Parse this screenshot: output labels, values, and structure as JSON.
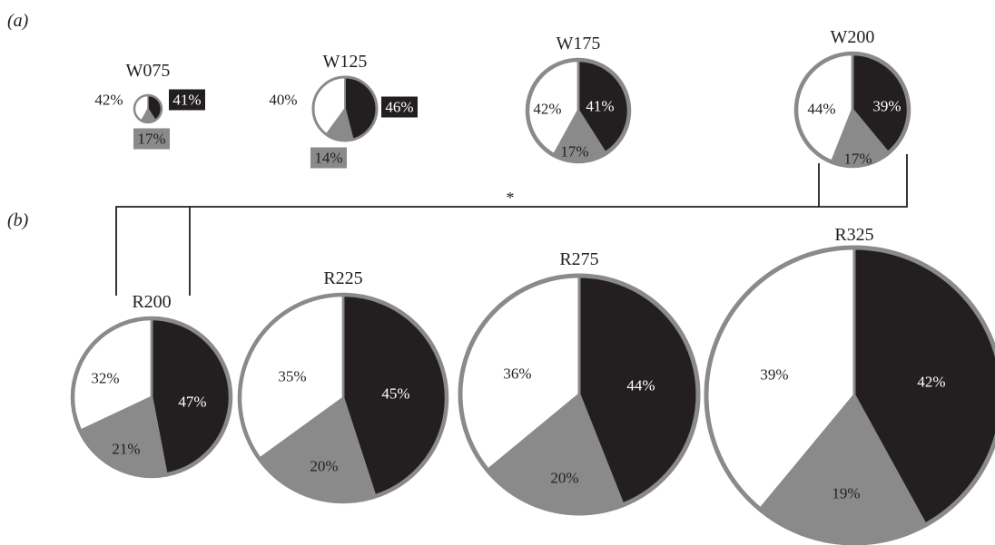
{
  "panels": [
    {
      "id": "a",
      "label": "(a)"
    },
    {
      "id": "b",
      "label": "(b)"
    }
  ],
  "colors": {
    "black_segment": "#231f20",
    "grey_segment": "#8a8a8a",
    "white_segment": "#ffffff",
    "outline": "#8a8a8a",
    "bracket": "#231f20"
  },
  "significance": {
    "marker": "*",
    "between": [
      "W200",
      "R200"
    ]
  },
  "chart_data": [
    {
      "type": "pie",
      "panel": "a",
      "title": "W075",
      "slices": [
        {
          "category": "black",
          "value": 41,
          "label": "41%"
        },
        {
          "category": "grey",
          "value": 17,
          "label": "17%"
        },
        {
          "category": "white",
          "value": 42,
          "label": "42%"
        }
      ]
    },
    {
      "type": "pie",
      "panel": "a",
      "title": "W125",
      "slices": [
        {
          "category": "black",
          "value": 46,
          "label": "46%"
        },
        {
          "category": "grey",
          "value": 14,
          "label": "14%"
        },
        {
          "category": "white",
          "value": 40,
          "label": "40%"
        }
      ]
    },
    {
      "type": "pie",
      "panel": "a",
      "title": "W175",
      "slices": [
        {
          "category": "black",
          "value": 41,
          "label": "41%"
        },
        {
          "category": "grey",
          "value": 17,
          "label": "17%"
        },
        {
          "category": "white",
          "value": 42,
          "label": "42%"
        }
      ]
    },
    {
      "type": "pie",
      "panel": "a",
      "title": "W200",
      "slices": [
        {
          "category": "black",
          "value": 39,
          "label": "39%"
        },
        {
          "category": "grey",
          "value": 17,
          "label": "17%"
        },
        {
          "category": "white",
          "value": 44,
          "label": "44%"
        }
      ]
    },
    {
      "type": "pie",
      "panel": "b",
      "title": "R200",
      "slices": [
        {
          "category": "black",
          "value": 47,
          "label": "47%"
        },
        {
          "category": "grey",
          "value": 21,
          "label": "21%"
        },
        {
          "category": "white",
          "value": 32,
          "label": "32%"
        }
      ]
    },
    {
      "type": "pie",
      "panel": "b",
      "title": "R225",
      "slices": [
        {
          "category": "black",
          "value": 45,
          "label": "45%"
        },
        {
          "category": "grey",
          "value": 20,
          "label": "20%"
        },
        {
          "category": "white",
          "value": 35,
          "label": "35%"
        }
      ]
    },
    {
      "type": "pie",
      "panel": "b",
      "title": "R275",
      "slices": [
        {
          "category": "black",
          "value": 44,
          "label": "44%"
        },
        {
          "category": "grey",
          "value": 20,
          "label": "20%"
        },
        {
          "category": "white",
          "value": 36,
          "label": "36%"
        }
      ]
    },
    {
      "type": "pie",
      "panel": "b",
      "title": "R325",
      "slices": [
        {
          "category": "black",
          "value": 42,
          "label": "42%"
        },
        {
          "category": "grey",
          "value": 19,
          "label": "19%"
        },
        {
          "category": "white",
          "value": 39,
          "label": "39%"
        }
      ]
    }
  ]
}
